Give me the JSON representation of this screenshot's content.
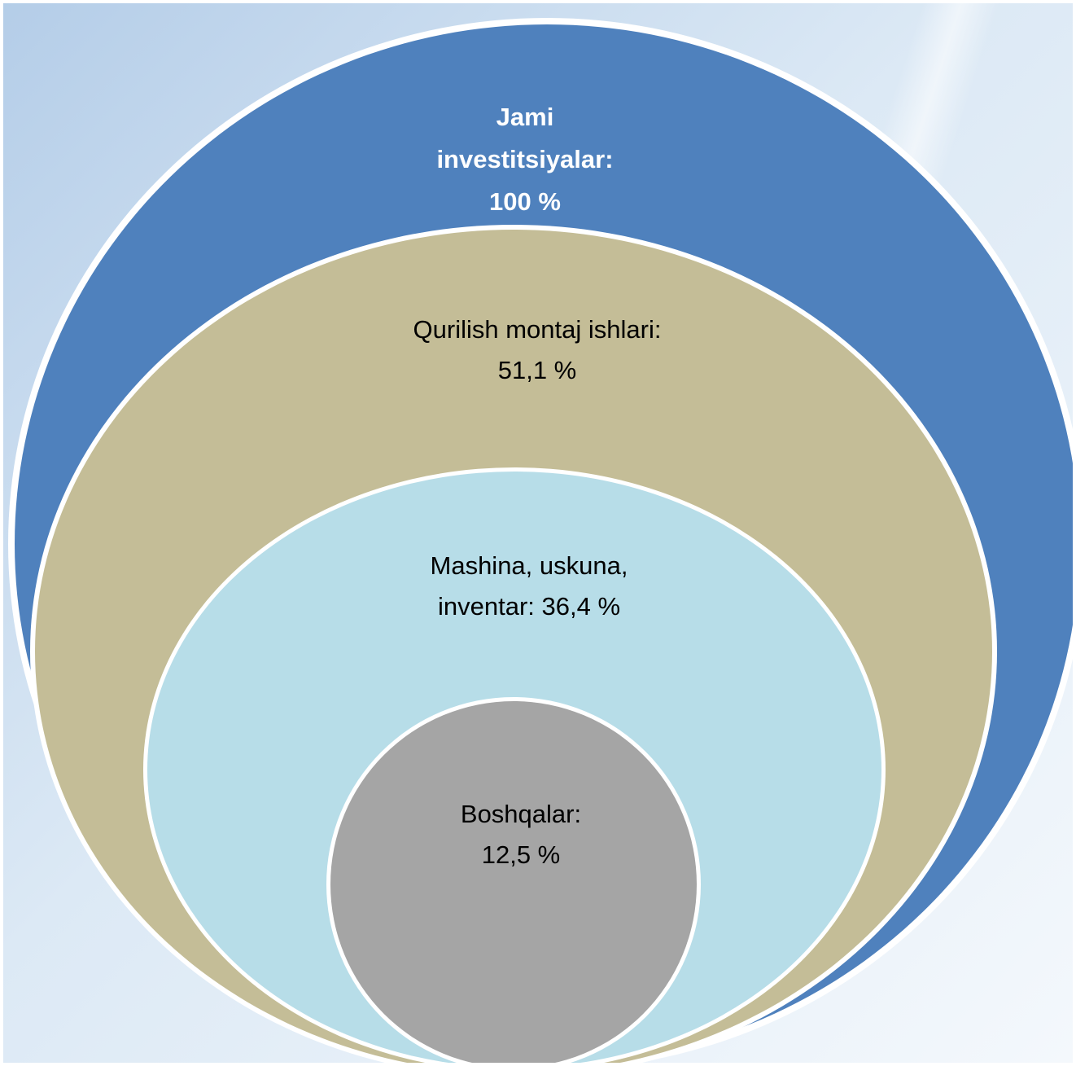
{
  "colors": {
    "background_light": "#eaf1f8",
    "background_mid": "#c7dced",
    "background_accent": "#a9c2df",
    "outer": "#4f81bd",
    "second": "#c4bd97",
    "third": "#b7dde8",
    "inner": "#a5a5a5",
    "stroke": "#ffffff"
  },
  "circles": [
    {
      "id": "jami",
      "label": "Jami\ninvestitsiyalar:\n100 %",
      "share_percent": 100
    },
    {
      "id": "qurilish",
      "label": "Qurilish montaj ishlari:\n51,1 %",
      "share_percent": 51.1
    },
    {
      "id": "mashina",
      "label": "Mashina, uskuna,\ninventar: 36,4 %",
      "share_percent": 36.4
    },
    {
      "id": "boshqalar",
      "label": "Boshqalar:\n12,5 %",
      "share_percent": 12.5
    }
  ]
}
